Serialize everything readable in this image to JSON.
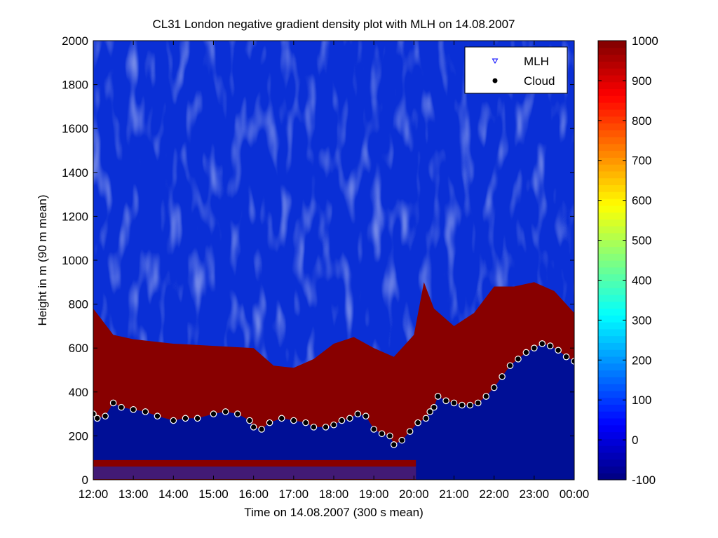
{
  "figure": {
    "title": "CL31 London negative gradient density plot with MLH on 14.08.2007",
    "xlabel": "Time on 14.08.2007 (300 s mean)",
    "ylabel": "Height in m (90 m mean)"
  },
  "chart_data": {
    "type": "heatmap",
    "title": "CL31 London negative gradient density plot with MLH on 14.08.2007",
    "xlabel": "Time on 14.08.2007 (300 s mean)",
    "ylabel": "Height in m (90 m mean)",
    "x_ticks": [
      "12:00",
      "13:00",
      "14:00",
      "15:00",
      "16:00",
      "17:00",
      "18:00",
      "19:00",
      "20:00",
      "21:00",
      "22:00",
      "23:00",
      "00:00"
    ],
    "x_range_hours": [
      12,
      24
    ],
    "y_ticks": [
      0,
      200,
      400,
      600,
      800,
      1000,
      1200,
      1400,
      1600,
      1800,
      2000
    ],
    "ylim": [
      0,
      2000
    ],
    "colorbar": {
      "colormap": "jet",
      "range": [
        -100,
        1000
      ],
      "ticks": [
        -100,
        0,
        100,
        200,
        300,
        400,
        500,
        600,
        700,
        800,
        900,
        1000
      ]
    },
    "legend": {
      "placement": "top-right",
      "entries": [
        {
          "label": "MLH",
          "marker": "triangle-down",
          "color": "#0000ff"
        },
        {
          "label": "Cloud",
          "marker": "dot",
          "color": "#000000"
        }
      ]
    },
    "high_density_top_m": {
      "time_h": [
        12.0,
        12.5,
        13.0,
        14.0,
        15.0,
        16.0,
        16.5,
        17.0,
        17.5,
        18.0,
        18.5,
        19.0,
        19.5,
        20.0,
        20.25,
        20.5,
        21.0,
        21.5,
        22.0,
        22.5,
        23.0,
        23.5,
        24.0
      ],
      "height_m": [
        780,
        660,
        640,
        620,
        610,
        600,
        520,
        510,
        550,
        620,
        650,
        600,
        560,
        660,
        900,
        780,
        700,
        760,
        880,
        880,
        900,
        860,
        760
      ]
    },
    "series": [
      {
        "name": "Cloud",
        "time_h": [
          12.0,
          12.1,
          12.3,
          12.5,
          12.7,
          13.0,
          13.3,
          13.6,
          14.0,
          14.3,
          14.6,
          15.0,
          15.3,
          15.6,
          15.9,
          16.0,
          16.2,
          16.4,
          16.7,
          17.0,
          17.3,
          17.5,
          17.8,
          18.0,
          18.2,
          18.4,
          18.6,
          18.8,
          19.0,
          19.2,
          19.4,
          19.5,
          19.7,
          19.9,
          20.1,
          20.3,
          20.4,
          20.5,
          20.6,
          20.8,
          21.0,
          21.2,
          21.4,
          21.6,
          21.8,
          22.0,
          22.2,
          22.4,
          22.6,
          22.8,
          23.0,
          23.2,
          23.4,
          23.6,
          23.8,
          24.0
        ],
        "height_m": [
          300,
          280,
          290,
          350,
          330,
          320,
          310,
          290,
          270,
          280,
          280,
          300,
          310,
          300,
          270,
          240,
          230,
          260,
          280,
          270,
          260,
          240,
          240,
          250,
          270,
          280,
          300,
          290,
          230,
          210,
          200,
          160,
          180,
          220,
          260,
          280,
          310,
          330,
          380,
          360,
          350,
          340,
          340,
          350,
          380,
          420,
          470,
          520,
          550,
          580,
          600,
          620,
          610,
          590,
          560,
          540
        ]
      },
      {
        "name": "MLH",
        "time_h": [],
        "height_m": []
      }
    ]
  }
}
